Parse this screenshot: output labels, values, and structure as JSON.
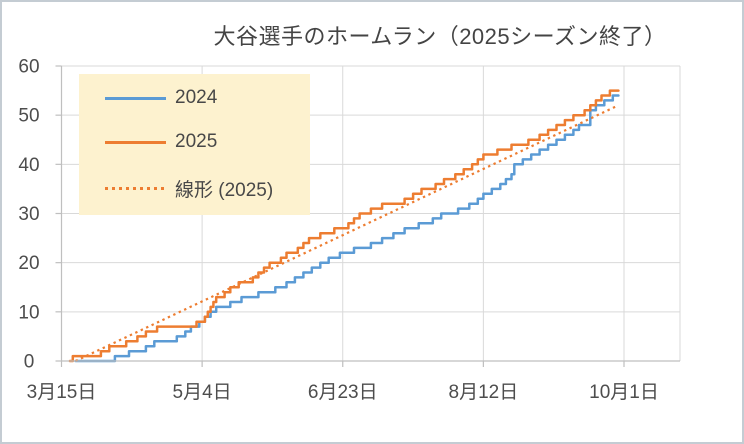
{
  "title": "大谷選手のホームラン（2025シーズン終了）",
  "colors": {
    "series_2024": "#5B9BD5",
    "series_2025": "#ED7D31",
    "trendline": "#ED7D31",
    "legend_bg": "#FDF2CF",
    "gridline": "#D9D9D9",
    "axis_line": "#BFBFBF",
    "axis_text": "#4d4d4d",
    "title_text": "#444444",
    "frame_border": "#c4ccd3"
  },
  "legend": {
    "items": [
      {
        "label": "2024",
        "color": "#5B9BD5",
        "style": "solid"
      },
      {
        "label": "2025",
        "color": "#ED7D31",
        "style": "solid"
      },
      {
        "label": "線形 (2025)",
        "color": "#ED7D31",
        "style": "dotted"
      }
    ]
  },
  "chart_data": {
    "type": "line",
    "title": "大谷選手のホームラン（2025シーズン終了）",
    "xlabel": "",
    "ylabel": "",
    "grid": true,
    "legend_position": "top-left-inside",
    "x_axis": {
      "unit": "date",
      "tick_labels": [
        "3月15日",
        "5月4日",
        "6月23日",
        "8月12日",
        "10月1日"
      ],
      "tick_day_offsets": [
        0,
        50,
        100,
        150,
        200
      ],
      "days_between_ticks": 50,
      "plot_extends_to_day": 220
    },
    "y_axis": {
      "min": 0,
      "max": 60,
      "tick_step": 10,
      "tick_labels": [
        "0",
        "10",
        "20",
        "30",
        "40",
        "50",
        "60"
      ]
    },
    "series": [
      {
        "name": "2024",
        "color": "#5B9BD5",
        "final_total": 54,
        "points_format": "[days_after_3月15日, cumulative_home_runs]",
        "points": [
          [
            5,
            0
          ],
          [
            19,
            1
          ],
          [
            24,
            2
          ],
          [
            30,
            3
          ],
          [
            33,
            4
          ],
          [
            41,
            5
          ],
          [
            44,
            6
          ],
          [
            46,
            7
          ],
          [
            49,
            8
          ],
          [
            51,
            9
          ],
          [
            53,
            10
          ],
          [
            55,
            11
          ],
          [
            60,
            12
          ],
          [
            64,
            13
          ],
          [
            70,
            14
          ],
          [
            76,
            15
          ],
          [
            80,
            16
          ],
          [
            83,
            17
          ],
          [
            86,
            18
          ],
          [
            89,
            19
          ],
          [
            92,
            20
          ],
          [
            95,
            21
          ],
          [
            99,
            22
          ],
          [
            104,
            23
          ],
          [
            110,
            24
          ],
          [
            114,
            25
          ],
          [
            118,
            26
          ],
          [
            122,
            27
          ],
          [
            127,
            28
          ],
          [
            132,
            29
          ],
          [
            135,
            30
          ],
          [
            141,
            31
          ],
          [
            145,
            32
          ],
          [
            148,
            33
          ],
          [
            150,
            34
          ],
          [
            153,
            35
          ],
          [
            156,
            36
          ],
          [
            158,
            37
          ],
          [
            160,
            38
          ],
          [
            161,
            40
          ],
          [
            164,
            41
          ],
          [
            167,
            42
          ],
          [
            170,
            43
          ],
          [
            173,
            44
          ],
          [
            176,
            45
          ],
          [
            179,
            46
          ],
          [
            182,
            47
          ],
          [
            184,
            48
          ],
          [
            188,
            51
          ],
          [
            190,
            52
          ],
          [
            193,
            53
          ],
          [
            196,
            54
          ],
          [
            198,
            54
          ]
        ]
      },
      {
        "name": "2025",
        "color": "#ED7D31",
        "final_total": 55,
        "points_format": "[days_after_3月15日, cumulative_home_runs]",
        "points": [
          [
            3,
            0
          ],
          [
            4,
            1
          ],
          [
            14,
            2
          ],
          [
            17,
            3
          ],
          [
            23,
            4
          ],
          [
            27,
            5
          ],
          [
            30,
            6
          ],
          [
            34,
            7
          ],
          [
            48,
            8
          ],
          [
            51,
            9
          ],
          [
            52,
            10
          ],
          [
            53,
            11
          ],
          [
            54,
            12
          ],
          [
            55,
            13
          ],
          [
            58,
            14
          ],
          [
            60,
            15
          ],
          [
            63,
            16
          ],
          [
            68,
            17
          ],
          [
            70,
            18
          ],
          [
            72,
            19
          ],
          [
            74,
            20
          ],
          [
            78,
            21
          ],
          [
            80,
            22
          ],
          [
            84,
            23
          ],
          [
            86,
            24
          ],
          [
            88,
            25
          ],
          [
            92,
            26
          ],
          [
            97,
            27
          ],
          [
            102,
            28
          ],
          [
            104,
            29
          ],
          [
            106,
            30
          ],
          [
            110,
            31
          ],
          [
            114,
            32
          ],
          [
            122,
            33
          ],
          [
            125,
            34
          ],
          [
            128,
            35
          ],
          [
            133,
            36
          ],
          [
            136,
            37
          ],
          [
            140,
            38
          ],
          [
            143,
            39
          ],
          [
            146,
            40
          ],
          [
            148,
            41
          ],
          [
            150,
            42
          ],
          [
            155,
            43
          ],
          [
            160,
            44
          ],
          [
            166,
            45
          ],
          [
            170,
            46
          ],
          [
            173,
            47
          ],
          [
            176,
            48
          ],
          [
            179,
            49
          ],
          [
            182,
            50
          ],
          [
            186,
            51
          ],
          [
            188,
            52
          ],
          [
            190,
            53
          ],
          [
            192,
            54
          ],
          [
            195,
            55
          ],
          [
            198,
            55
          ]
        ]
      }
    ],
    "trendline": {
      "name": "線形 (2025)",
      "applies_to": "2025",
      "style": "dotted",
      "color": "#ED7D31",
      "from_point": [
        5,
        0
      ],
      "to_point": [
        198,
        52
      ]
    }
  }
}
